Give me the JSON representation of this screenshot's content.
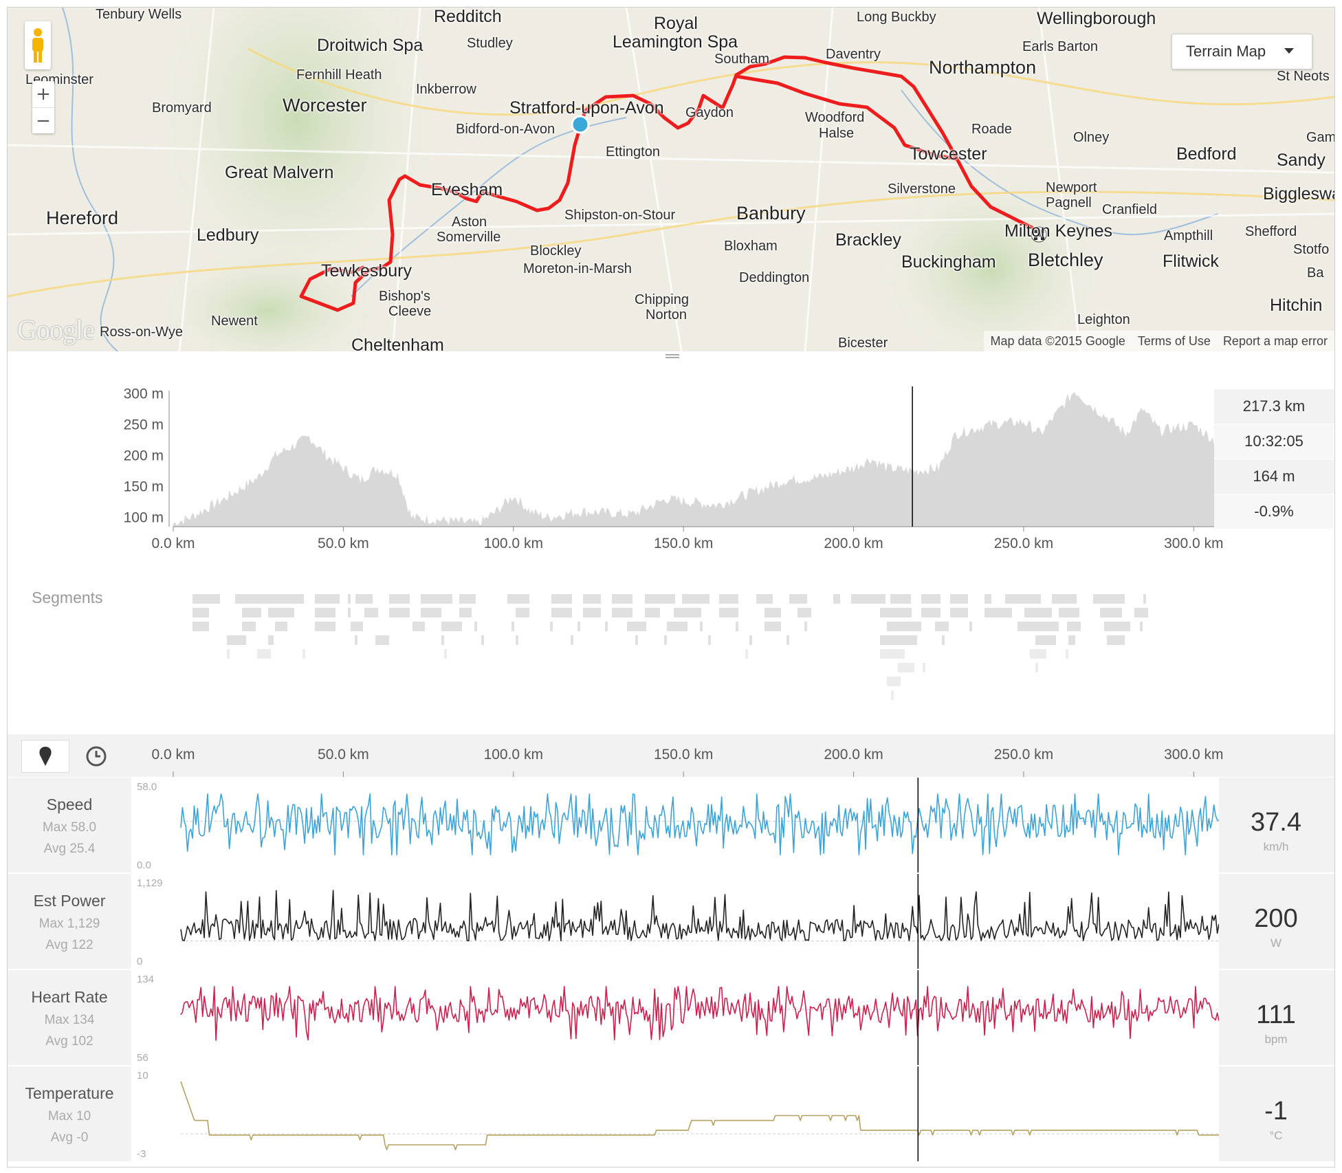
{
  "map": {
    "type_selector": "Terrain Map",
    "footer": {
      "attribution": "Map data ©2015 Google",
      "terms": "Terms of Use",
      "report": "Report a map error"
    },
    "logo": "Google",
    "places": [
      {
        "name": "Tenbury Wells"
      },
      {
        "name": "Redditch"
      },
      {
        "name": "Royal"
      },
      {
        "name": "Leamington Spa"
      },
      {
        "name": "Long Buckby"
      },
      {
        "name": "Wellingborough"
      },
      {
        "name": "Droitwich Spa"
      },
      {
        "name": "Studley"
      },
      {
        "name": "Earls Barton"
      },
      {
        "name": "Leominster"
      },
      {
        "name": "Fernhill Heath"
      },
      {
        "name": "Southam"
      },
      {
        "name": "Daventry"
      },
      {
        "name": "Northampton"
      },
      {
        "name": "St Neots"
      },
      {
        "name": "Inkberrow"
      },
      {
        "name": "Bromyard"
      },
      {
        "name": "Worcester"
      },
      {
        "name": "Stratford-upon-Avon"
      },
      {
        "name": "Gaydon"
      },
      {
        "name": "Woodford"
      },
      {
        "name": "Halse"
      },
      {
        "name": "Bidford-on-Avon"
      },
      {
        "name": "Roade"
      },
      {
        "name": "Olney"
      },
      {
        "name": "Gam"
      },
      {
        "name": "Ettington"
      },
      {
        "name": "Towcester"
      },
      {
        "name": "Bedford"
      },
      {
        "name": "Sandy"
      },
      {
        "name": "Great Malvern"
      },
      {
        "name": "Evesham"
      },
      {
        "name": "Silverstone"
      },
      {
        "name": "Newport"
      },
      {
        "name": "Pagnell"
      },
      {
        "name": "Biggleswa"
      },
      {
        "name": "Cranfield"
      },
      {
        "name": "Hereford"
      },
      {
        "name": "Shipston-on-Stour"
      },
      {
        "name": "Banbury"
      },
      {
        "name": "Ledbury"
      },
      {
        "name": "Aston"
      },
      {
        "name": "Somerville"
      },
      {
        "name": "Milton Keynes"
      },
      {
        "name": "Ampthill"
      },
      {
        "name": "Shefford"
      },
      {
        "name": "Brackley"
      },
      {
        "name": "Bloxham"
      },
      {
        "name": "Blockley"
      },
      {
        "name": "Stotfo"
      },
      {
        "name": "Flitwick"
      },
      {
        "name": "Bletchley"
      },
      {
        "name": "Buckingham"
      },
      {
        "name": "Tewkesbury"
      },
      {
        "name": "Moreton-in-Marsh"
      },
      {
        "name": "Ba"
      },
      {
        "name": "Deddington"
      },
      {
        "name": "Bishop's"
      },
      {
        "name": "Cleeve"
      },
      {
        "name": "Chipping"
      },
      {
        "name": "Norton"
      },
      {
        "name": "Hitchin"
      },
      {
        "name": "Newent"
      },
      {
        "name": "Leighton"
      },
      {
        "name": "Ross-on-Wye"
      },
      {
        "name": "Cheltenham"
      },
      {
        "name": "Bicester"
      }
    ]
  },
  "elevation": {
    "y_ticks": [
      "300 m",
      "250 m",
      "200 m",
      "150 m",
      "100 m"
    ],
    "x_ticks": [
      "0.0 km",
      "50.0 km",
      "100.0 km",
      "150.0 km",
      "200.0 km",
      "250.0 km",
      "300.0 km"
    ],
    "stats": {
      "distance": "217.3 km",
      "time": "10:32:05",
      "elevation": "164 m",
      "grade": "-0.9%"
    },
    "cursor_km": 217.3,
    "total_km": 306,
    "ylim": [
      85,
      305
    ]
  },
  "segments": {
    "title": "Segments"
  },
  "streams": {
    "x_ticks": [
      "0.0 km",
      "50.0 km",
      "100.0 km",
      "150.0 km",
      "200.0 km",
      "250.0 km",
      "300.0 km"
    ],
    "rows": [
      {
        "name": "Speed",
        "max_label": "Max 58.0",
        "avg_label": "Avg 25.4",
        "y_max": "58.0",
        "y_min": "0.0",
        "value": "37.4",
        "unit": "km/h",
        "color": "#3ba3d6"
      },
      {
        "name": "Est Power",
        "max_label": "Max 1,129",
        "avg_label": "Avg 122",
        "y_max": "1,129",
        "y_min": "0",
        "value": "200",
        "unit": "W",
        "color": "#222222"
      },
      {
        "name": "Heart Rate",
        "max_label": "Max 134",
        "avg_label": "Avg 102",
        "y_max": "134",
        "y_min": "56",
        "value": "111",
        "unit": "bpm",
        "color": "#cc1f4d"
      },
      {
        "name": "Temperature",
        "max_label": "Max 10",
        "avg_label": "Avg -0",
        "y_max": "10",
        "y_min": "-3",
        "value": "-1",
        "unit": "°C",
        "color": "#b4a160"
      }
    ]
  },
  "colors": {
    "route": "#ee1c1c",
    "elevation_fill": "#d8d8d8",
    "cursor": "#000000",
    "start_marker": "#3aa8d8"
  }
}
